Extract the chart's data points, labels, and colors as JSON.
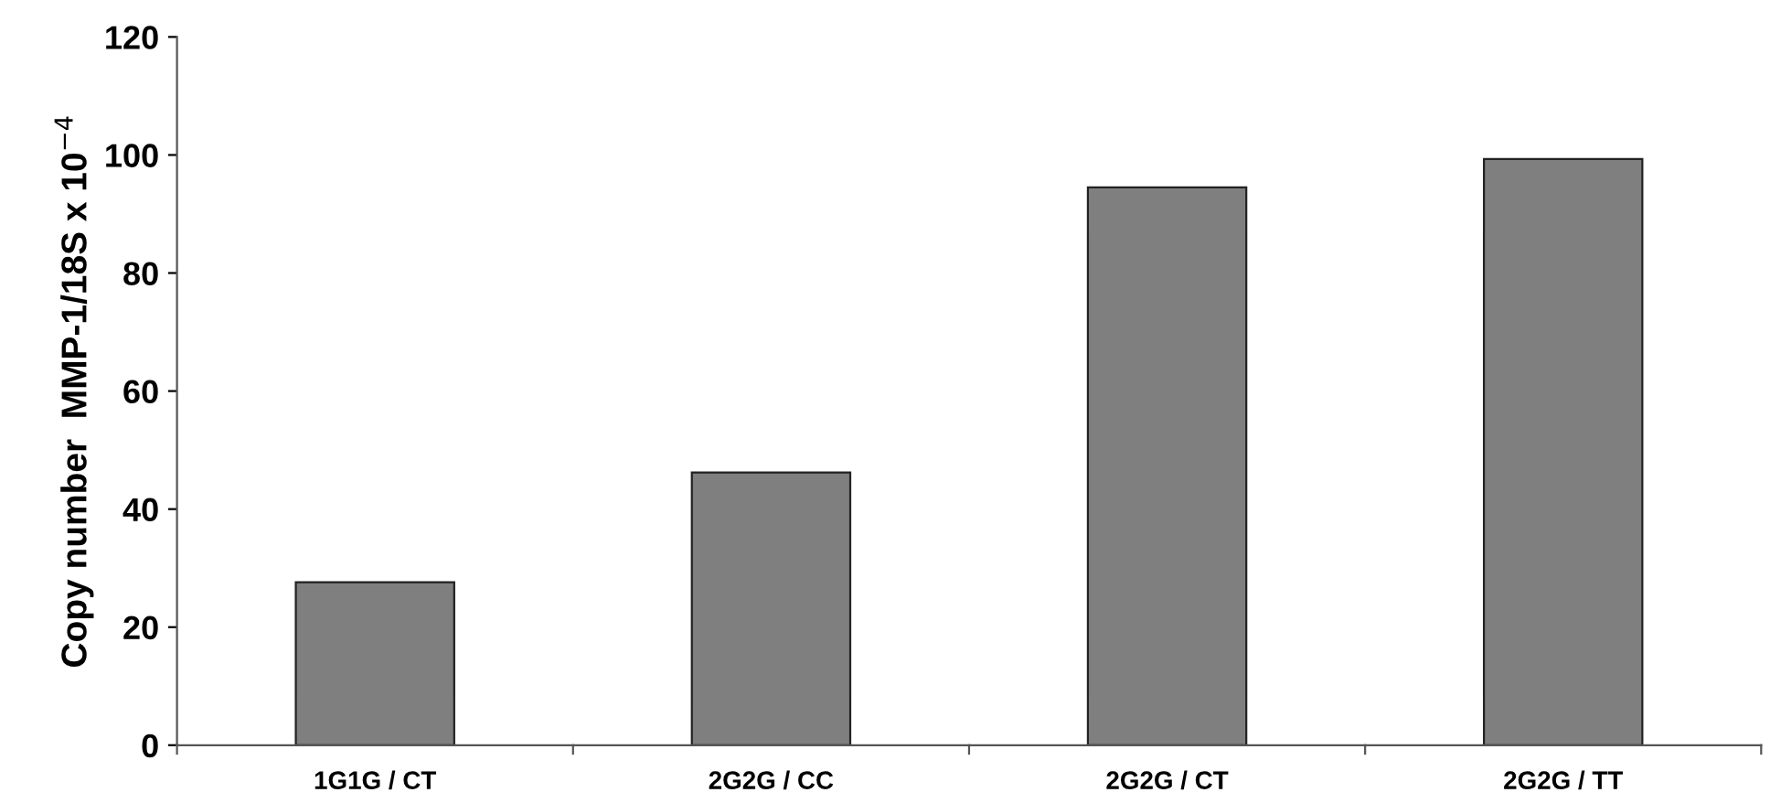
{
  "chart_data": {
    "type": "bar",
    "ylabel": "Copy number  MMP-1/18S x 10$^{−4}$",
    "categories": [
      "1G1G / CT",
      "2G2G / CC",
      "2G2G / CT",
      "2G2G / TT"
    ],
    "values": [
      27.6,
      46.2,
      94.5,
      99.3
    ],
    "color": "#7f7f7f",
    "ylim": [
      0,
      120
    ],
    "yticks": [
      0,
      20,
      40,
      60,
      80,
      100,
      120
    ],
    "grid": false,
    "legend": false
  }
}
